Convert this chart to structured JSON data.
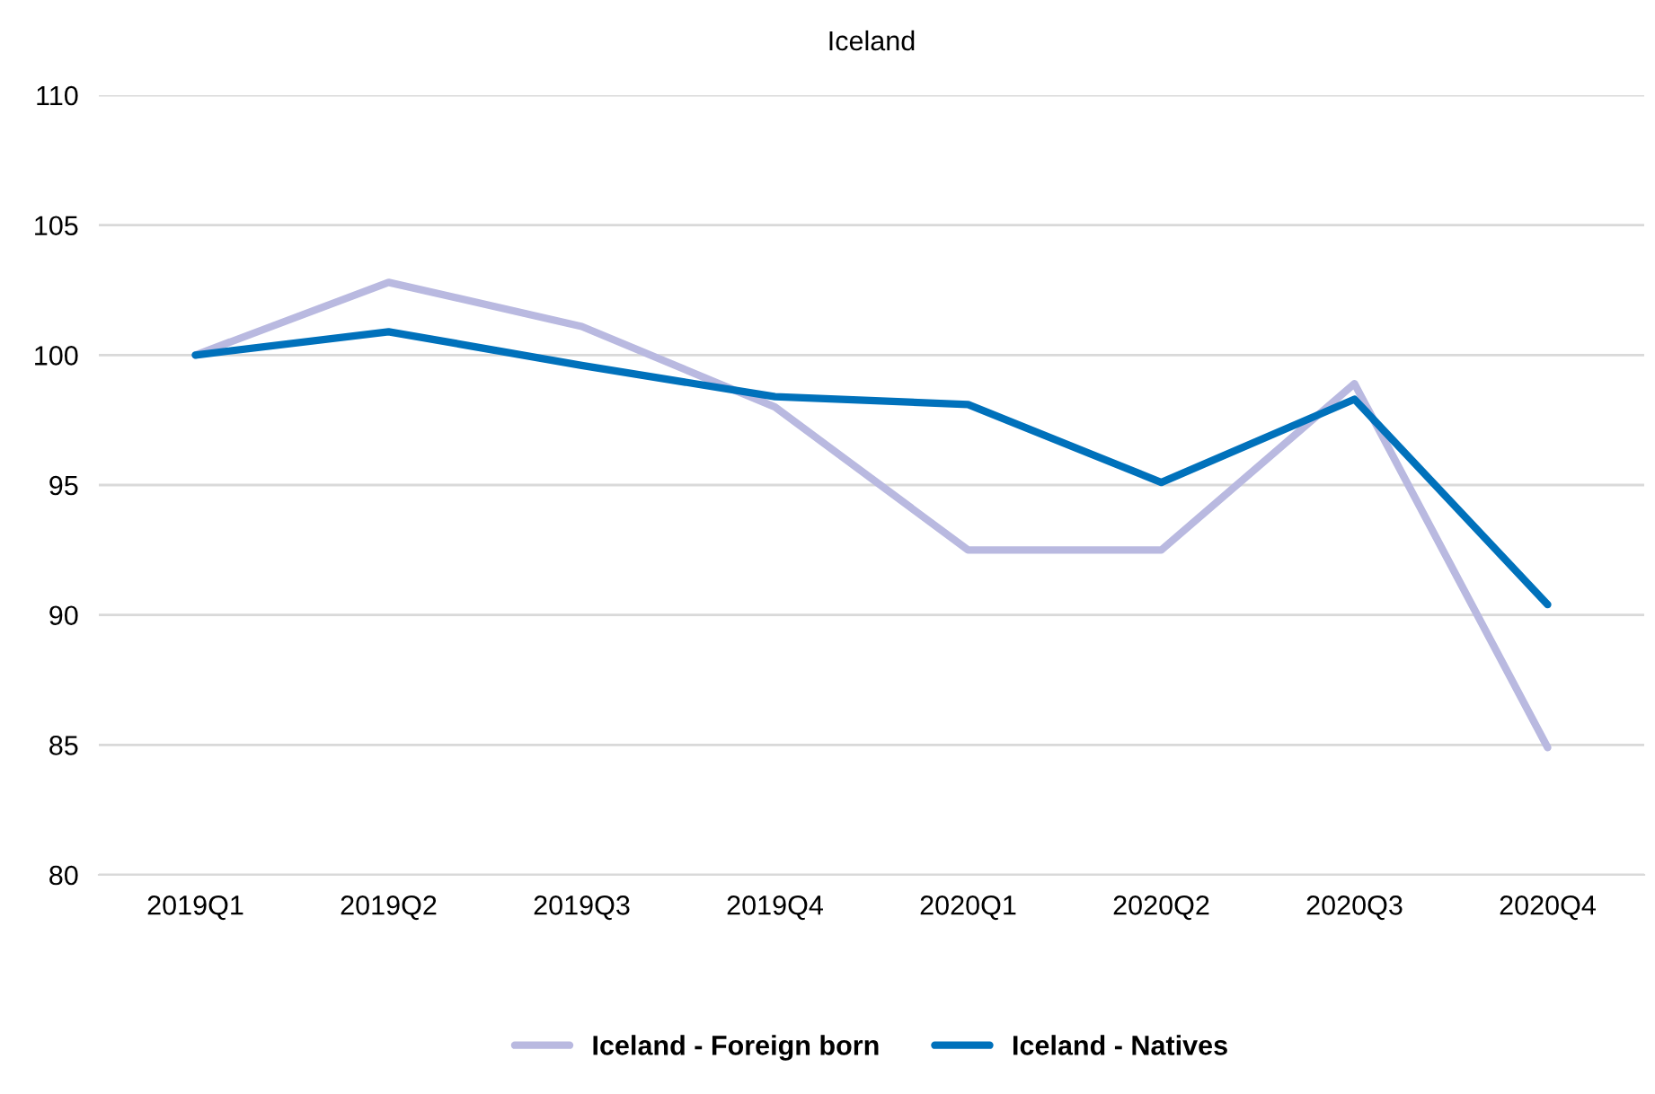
{
  "chart_data": {
    "type": "line",
    "title": "Iceland",
    "categories": [
      "2019Q1",
      "2019Q2",
      "2019Q3",
      "2019Q4",
      "2020Q1",
      "2020Q2",
      "2020Q3",
      "2020Q4"
    ],
    "series": [
      {
        "name": "Iceland - Foreign born",
        "color": "#b9b9e0",
        "values": [
          100.0,
          102.8,
          101.1,
          98.0,
          92.5,
          92.5,
          98.9,
          84.9
        ]
      },
      {
        "name": "Iceland - Natives",
        "color": "#0071bb",
        "values": [
          100.0,
          100.9,
          99.6,
          98.4,
          98.1,
          95.1,
          98.3,
          90.4
        ]
      }
    ],
    "ylim": [
      80,
      110
    ],
    "yticks": [
      80,
      85,
      90,
      95,
      100,
      105,
      110
    ],
    "grid": "y",
    "legend": "bottom",
    "marker": "none",
    "line_style": "solid"
  }
}
